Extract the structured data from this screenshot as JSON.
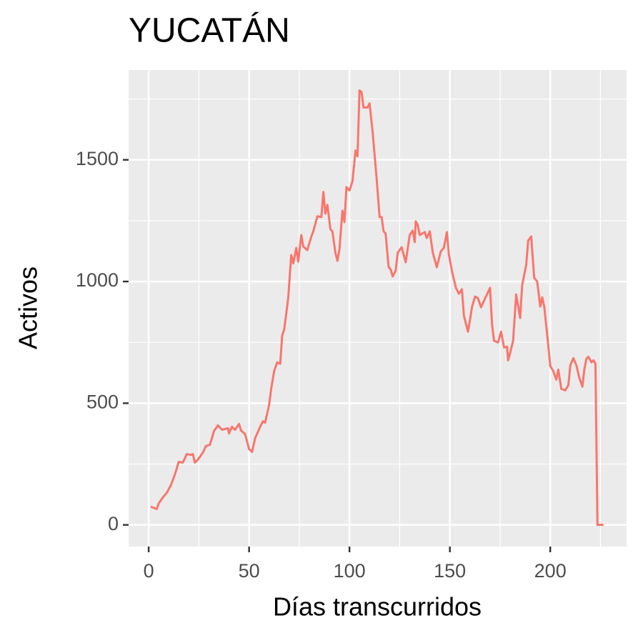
{
  "chart_data": {
    "type": "line",
    "title": "YUCATÁN",
    "x_label": "Días transcurridos",
    "y_label": "Activos",
    "x": [
      1,
      4,
      5,
      7,
      9,
      11,
      13,
      15,
      17,
      19,
      21,
      22,
      23,
      24.5,
      27,
      28.5,
      30.5,
      32.5,
      34.5,
      36.5,
      39.5,
      40,
      41.5,
      43,
      45,
      46,
      48,
      50,
      51.5,
      53,
      56,
      57,
      58,
      60,
      61,
      62.5,
      64,
      65.5,
      66.5,
      67.5,
      69.5,
      71,
      72,
      73.5,
      74.5,
      76,
      77,
      79,
      81,
      82,
      84,
      86,
      87,
      88,
      89,
      90.5,
      91.5,
      93,
      94,
      95,
      96.5,
      97.5,
      98.5,
      100,
      101.5,
      103,
      104,
      105,
      106,
      107,
      109,
      110,
      111.5,
      113.5,
      115,
      116,
      117,
      118,
      119.5,
      120.5,
      121.5,
      123,
      124,
      126,
      128,
      130,
      131.5,
      132.5,
      133,
      134,
      135,
      137.5,
      138.5,
      140,
      141.5,
      143.5,
      145.5,
      147,
      148.5,
      149.5,
      151,
      153,
      154.5,
      156,
      157,
      159,
      160,
      161,
      162.5,
      164,
      165.5,
      167,
      169,
      170,
      171,
      172,
      174,
      175.5,
      177,
      178.5,
      179,
      180,
      181.5,
      183,
      185,
      186,
      188,
      189,
      190.5,
      192,
      193.5,
      195,
      196,
      197,
      198.5,
      200,
      201.5,
      203,
      204,
      205.5,
      207.5,
      209,
      210,
      211.5,
      213,
      214.5,
      216,
      217,
      218,
      219,
      220.5,
      221.5,
      222.5,
      223.5,
      226.5
    ],
    "series": [
      {
        "name": "Activos",
        "color": "#f8766d",
        "values": [
          75,
          65,
          88,
          112,
          132,
          162,
          206,
          259,
          256,
          291,
          288,
          291,
          256,
          268,
          297,
          324,
          329,
          385,
          409,
          391,
          397,
          376,
          403,
          391,
          415,
          388,
          373,
          312,
          300,
          356,
          412,
          426,
          420,
          494,
          559,
          632,
          668,
          662,
          779,
          803,
          932,
          1109,
          1074,
          1138,
          1082,
          1191,
          1144,
          1129,
          1185,
          1206,
          1268,
          1265,
          1368,
          1279,
          1315,
          1215,
          1206,
          1118,
          1085,
          1132,
          1291,
          1244,
          1388,
          1374,
          1412,
          1538,
          1515,
          1785,
          1779,
          1715,
          1715,
          1732,
          1618,
          1426,
          1265,
          1265,
          1206,
          1197,
          1059,
          1050,
          1021,
          1044,
          1118,
          1141,
          1079,
          1191,
          1209,
          1162,
          1247,
          1232,
          1191,
          1203,
          1179,
          1206,
          1118,
          1059,
          1124,
          1138,
          1203,
          1112,
          1044,
          974,
          950,
          968,
          859,
          794,
          841,
          894,
          938,
          932,
          894,
          921,
          956,
          974,
          824,
          756,
          750,
          794,
          729,
          732,
          676,
          706,
          756,
          947,
          850,
          985,
          1068,
          1168,
          1185,
          1015,
          1000,
          897,
          935,
          897,
          779,
          653,
          632,
          597,
          638,
          559,
          553,
          574,
          656,
          685,
          656,
          603,
          568,
          641,
          682,
          691,
          668,
          676,
          662,
          0,
          0
        ]
      }
    ],
    "xlim": [
      -10,
      238
    ],
    "ylim": [
      -89,
      1869
    ],
    "xticks": [
      0,
      50,
      100,
      150,
      200
    ],
    "yticks": [
      0,
      500,
      1000,
      1500
    ],
    "xminor": [
      25,
      75,
      125,
      175,
      225
    ],
    "yminor": [
      250,
      750,
      1250,
      1750
    ],
    "grid": true,
    "panel_color": "#ebebeb"
  }
}
